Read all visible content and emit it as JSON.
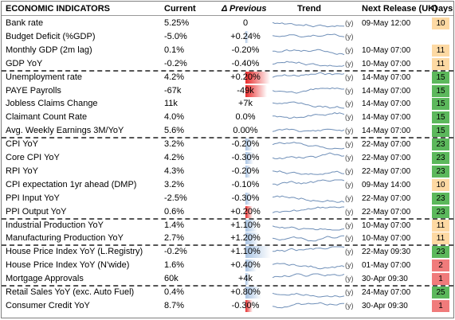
{
  "header": {
    "title": "ECONOMIC INDICATORS",
    "current": "Current",
    "previous": "Δ Previous",
    "trend": "Trend",
    "next_release": "Next Release (UK)",
    "days": "Days"
  },
  "colors": {
    "days_orange": "#fdd9a3",
    "days_green": "#5cb85c",
    "days_red": "#f07b7b",
    "bar_red": "#e82c2c",
    "bar_blue": "#a9c4e4",
    "trend_line": "#6f8fb8"
  },
  "rows": [
    {
      "name": "Bank rate",
      "current": "5.25%",
      "prev": "0",
      "bar": "none",
      "bar_mag": 0,
      "link": "(y)",
      "release": "09-May 12:00",
      "days": "10",
      "days_color": "orange"
    },
    {
      "name": "Budget Deficit (%GDP)",
      "current": "-5.0%",
      "prev": "+0.24%",
      "bar": "blue",
      "bar_mag": 0.06,
      "link": "(y)",
      "release": "",
      "days": "",
      "days_color": "none"
    },
    {
      "name": "Monthly GDP (2m lag)",
      "current": "0.1%",
      "prev": "-0.20%",
      "bar": "none",
      "bar_mag": 0,
      "link": "(y)",
      "release": "10-May 07:00",
      "days": "11",
      "days_color": "orange"
    },
    {
      "name": "GDP YoY",
      "current": "-0.2%",
      "prev": "-0.40%",
      "bar": "none",
      "bar_mag": 0,
      "link": "(y)",
      "release": "10-May 07:00",
      "days": "11",
      "days_color": "orange"
    },
    {
      "name": "Unemployment rate",
      "current": "4.2%",
      "prev": "+0.20%",
      "bar": "red",
      "bar_mag": 0.9,
      "link": "(y)",
      "release": "14-May 07:00",
      "days": "15",
      "days_color": "green"
    },
    {
      "name": "PAYE Payrolls",
      "current": "-67k",
      "prev": "-49k",
      "bar": "red",
      "bar_mag": 0.8,
      "link": "(y)",
      "release": "14-May 07:00",
      "days": "15",
      "days_color": "green"
    },
    {
      "name": "Jobless Claims Change",
      "current": "11k",
      "prev": "+7k",
      "bar": "none",
      "bar_mag": 0,
      "link": "(y)",
      "release": "14-May 07:00",
      "days": "15",
      "days_color": "green"
    },
    {
      "name": "Claimant Count Rate",
      "current": "4.0%",
      "prev": "0.0%",
      "bar": "none",
      "bar_mag": 0,
      "link": "(y)",
      "release": "14-May 07:00",
      "days": "15",
      "days_color": "green"
    },
    {
      "name": "Avg. Weekly Earnings 3M/YoY",
      "current": "5.6%",
      "prev": "0.00%",
      "bar": "none",
      "bar_mag": 0,
      "link": "(y)",
      "release": "14-May 07:00",
      "days": "15",
      "days_color": "green"
    },
    {
      "name": "CPI  YoY",
      "current": "3.2%",
      "prev": "-0.20%",
      "bar": "blue",
      "bar_mag": 0.25,
      "link": "(y)",
      "release": "22-May 07:00",
      "days": "23",
      "days_color": "green"
    },
    {
      "name": "Core CPI YoY",
      "current": "4.2%",
      "prev": "-0.30%",
      "bar": "blue",
      "bar_mag": 0.3,
      "link": "(y)",
      "release": "22-May 07:00",
      "days": "23",
      "days_color": "green"
    },
    {
      "name": "RPI  YoY",
      "current": "4.3%",
      "prev": "-0.20%",
      "bar": "blue",
      "bar_mag": 0.2,
      "link": "(y)",
      "release": "22-May 07:00",
      "days": "23",
      "days_color": "green"
    },
    {
      "name": "CPI expectation 1yr ahead (DMP)",
      "current": "3.2%",
      "prev": "-0.10%",
      "bar": "none",
      "bar_mag": 0,
      "link": "(y)",
      "release": "09-May 14:00",
      "days": "10",
      "days_color": "orange"
    },
    {
      "name": "PPI Input YoY",
      "current": "-2.5%",
      "prev": "-0.30%",
      "bar": "blue",
      "bar_mag": 0.2,
      "link": "(y)",
      "release": "22-May 07:00",
      "days": "23",
      "days_color": "green"
    },
    {
      "name": "PPI Output YoY",
      "current": "0.6%",
      "prev": "+0.20%",
      "bar": "red",
      "bar_mag": 0.25,
      "link": "(y)",
      "release": "22-May 07:00",
      "days": "23",
      "days_color": "green"
    },
    {
      "name": "Industrial Production YoY",
      "current": "1.4%",
      "prev": "+1.10%",
      "bar": "blue",
      "bar_mag": 0.45,
      "link": "(y)",
      "release": "10-May 07:00",
      "days": "11",
      "days_color": "orange"
    },
    {
      "name": "Manufacturing Production YoY",
      "current": "2.7%",
      "prev": "+1.20%",
      "bar": "blue",
      "bar_mag": 0.5,
      "link": "(y)",
      "release": "10-May 07:00",
      "days": "11",
      "days_color": "orange"
    },
    {
      "name": "House Price Index YoY (L.Registry)",
      "current": "-0.2%",
      "prev": "+1.10%",
      "bar": "blue",
      "bar_mag": 0.95,
      "link": "(y)",
      "release": "22-May 09:30",
      "days": "23",
      "days_color": "green"
    },
    {
      "name": "House Price Index YoY (N'wide)",
      "current": "1.6%",
      "prev": "+0.40%",
      "bar": "blue",
      "bar_mag": 0.4,
      "link": "(y)",
      "release": "01-May 07:00",
      "days": "2",
      "days_color": "red"
    },
    {
      "name": "Mortgage Approvals",
      "current": "60k",
      "prev": "+4k",
      "bar": "blue",
      "bar_mag": 0.15,
      "link": "(y)",
      "release": "30-Apr 09:30",
      "days": "1",
      "days_color": "red"
    },
    {
      "name": "Retail Sales YoY (exc. Auto Fuel)",
      "current": "0.4%",
      "prev": "+0.80%",
      "bar": "blue",
      "bar_mag": 0.6,
      "link": "(y)",
      "release": "24-May 07:00",
      "days": "25",
      "days_color": "green"
    },
    {
      "name": "Consumer Credit YoY",
      "current": "8.7%",
      "prev": "-0.30%",
      "bar": "red",
      "bar_mag": 0.25,
      "link": "(y)",
      "release": "30-Apr 09:30",
      "days": "1",
      "days_color": "red"
    }
  ]
}
